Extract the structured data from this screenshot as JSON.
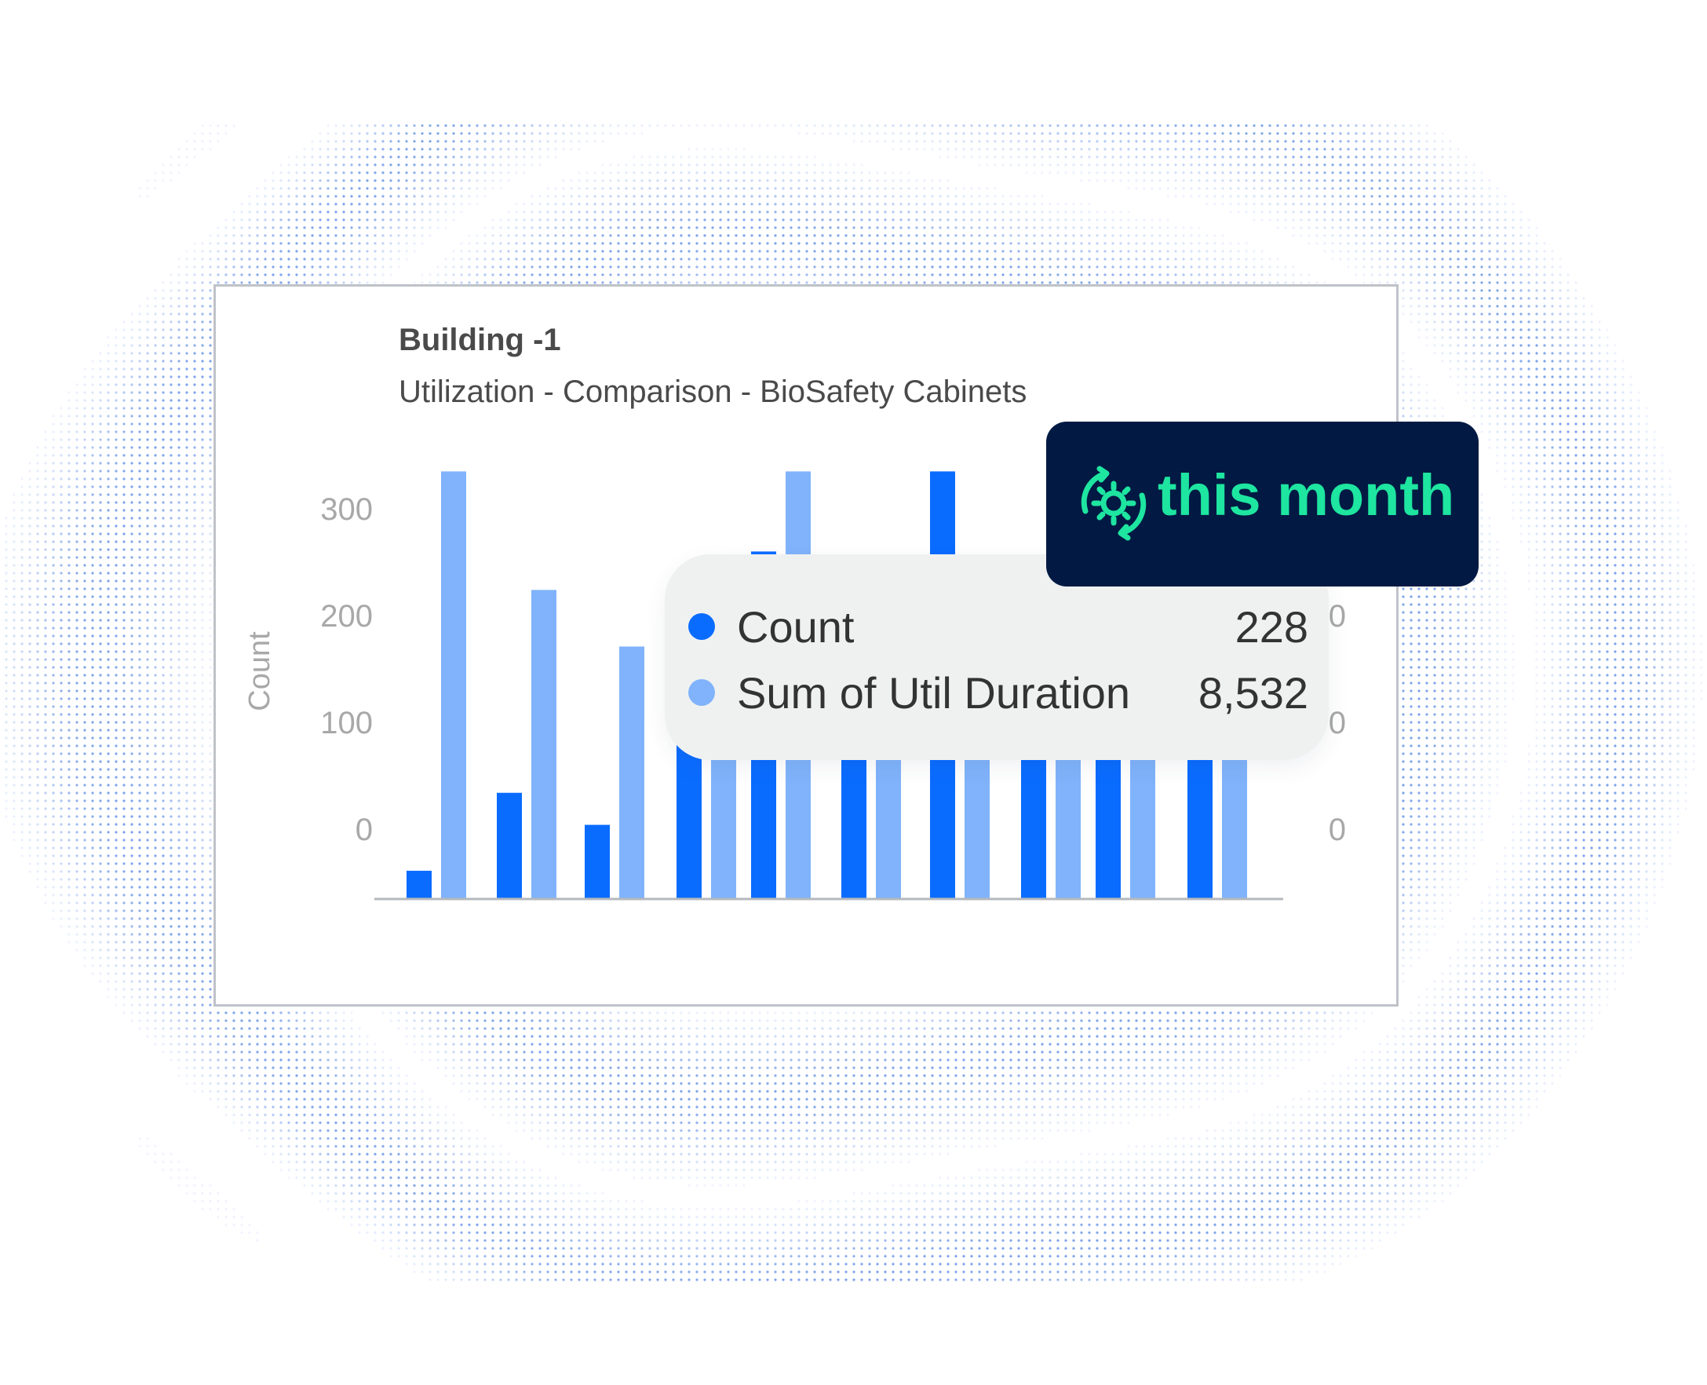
{
  "colors": {
    "count": "#0a6cff",
    "util": "#80b3fb",
    "badge_bg": "#021a43",
    "badge_text": "#1ee5a0",
    "tooltip_bg": "#eff1f1",
    "axis_text": "#a8a8a8"
  },
  "chart_data": {
    "type": "bar",
    "title": "Building -1",
    "subtitle": "Utilization - Comparison - BioSafety Cabinets",
    "ylabel": "Count",
    "ylim": [
      -65,
      335
    ],
    "yticks": [
      0,
      100,
      200,
      300
    ],
    "right_axis_ticks": [
      "0",
      "0",
      "0"
    ],
    "grid": false,
    "series": [
      {
        "name": "Count",
        "values": [
          -39,
          34,
          4,
          130,
          260,
          150,
          335,
          190,
          180,
          90
        ]
      },
      {
        "name": "Sum of Util Duration",
        "values": [
          335,
          224,
          171,
          230,
          335,
          160,
          200,
          70,
          190,
          120
        ]
      }
    ]
  },
  "tooltip": {
    "rows": [
      {
        "label": "Count",
        "value": "228"
      },
      {
        "label": "Sum of Util Duration",
        "value": "8,532"
      }
    ]
  },
  "badge": {
    "text": "this month",
    "icon": "refresh-gear-icon"
  }
}
